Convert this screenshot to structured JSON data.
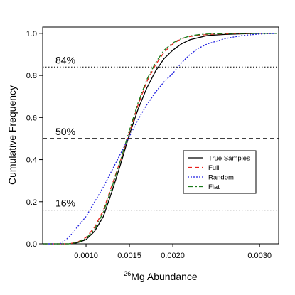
{
  "chart_data": {
    "type": "line",
    "title": "",
    "xlabel_sup": "26",
    "xlabel_main": "Mg Abundance",
    "ylabel": "Cumulative Frequency",
    "xlim": [
      0.0005,
      0.00322
    ],
    "ylim": [
      0.0,
      1.03
    ],
    "x_ticks": [
      0.001,
      0.0015,
      0.002,
      0.003
    ],
    "x_tick_labels": [
      "0.0010",
      "0.0015",
      "0.0020",
      "0.0030"
    ],
    "y_ticks": [
      0.0,
      0.2,
      0.4,
      0.6,
      0.8,
      1.0
    ],
    "y_tick_labels": [
      "0.0",
      "0.2",
      "0.4",
      "0.6",
      "0.8",
      "1.0"
    ],
    "grid": false,
    "legend_position": "center-right",
    "reference_lines": [
      {
        "y": 0.84,
        "label": "84%",
        "style": "dotted"
      },
      {
        "y": 0.5,
        "label": "50%",
        "style": "dashed"
      },
      {
        "y": 0.16,
        "label": "16%",
        "style": "dotted"
      }
    ],
    "series": [
      {
        "name": "True Samples",
        "color": "#000000",
        "dash": "",
        "x": [
          0.0005,
          0.0008,
          0.0009,
          0.001,
          0.0011,
          0.0012,
          0.0013,
          0.0014,
          0.0015,
          0.0016,
          0.0017,
          0.0018,
          0.0019,
          0.002,
          0.0021,
          0.0022,
          0.0023,
          0.0024,
          0.0026,
          0.0028,
          0.003,
          0.0032
        ],
        "y": [
          0.0,
          0.0,
          0.005,
          0.02,
          0.06,
          0.13,
          0.25,
          0.38,
          0.52,
          0.64,
          0.74,
          0.82,
          0.88,
          0.92,
          0.95,
          0.97,
          0.98,
          0.99,
          0.995,
          0.998,
          1.0,
          1.0
        ]
      },
      {
        "name": "Full",
        "color": "#e8211c",
        "dash": "6,4",
        "x": [
          0.0005,
          0.0008,
          0.0009,
          0.001,
          0.0011,
          0.0012,
          0.0013,
          0.0014,
          0.0015,
          0.0016,
          0.0017,
          0.0018,
          0.0019,
          0.002,
          0.0021,
          0.0022,
          0.0023,
          0.0024,
          0.0026,
          0.0028,
          0.003,
          0.0032
        ],
        "y": [
          0.0,
          0.0,
          0.008,
          0.03,
          0.08,
          0.16,
          0.28,
          0.4,
          0.53,
          0.66,
          0.77,
          0.85,
          0.91,
          0.95,
          0.975,
          0.985,
          0.99,
          0.995,
          0.998,
          1.0,
          1.0,
          1.0
        ]
      },
      {
        "name": "Random",
        "color": "#1f1fe0",
        "dash": "2,2",
        "x": [
          0.0005,
          0.0007,
          0.0008,
          0.0009,
          0.001,
          0.0011,
          0.0012,
          0.0013,
          0.0014,
          0.0015,
          0.0016,
          0.0017,
          0.0018,
          0.0019,
          0.002,
          0.0021,
          0.0022,
          0.0023,
          0.0024,
          0.0026,
          0.0028,
          0.003,
          0.0032
        ],
        "y": [
          0.0,
          0.0,
          0.03,
          0.08,
          0.13,
          0.2,
          0.27,
          0.35,
          0.43,
          0.51,
          0.59,
          0.66,
          0.72,
          0.77,
          0.81,
          0.86,
          0.9,
          0.93,
          0.95,
          0.975,
          0.99,
          0.997,
          1.0
        ]
      },
      {
        "name": "Flat",
        "color": "#1a7a1a",
        "dash": "8,3,2,3",
        "x": [
          0.0005,
          0.0008,
          0.0009,
          0.001,
          0.0011,
          0.0012,
          0.0013,
          0.0014,
          0.0015,
          0.0016,
          0.0017,
          0.0018,
          0.0019,
          0.002,
          0.0021,
          0.0022,
          0.0023,
          0.0024,
          0.0026,
          0.0028,
          0.003,
          0.0032
        ],
        "y": [
          0.0,
          0.0,
          0.006,
          0.025,
          0.07,
          0.15,
          0.27,
          0.4,
          0.54,
          0.67,
          0.78,
          0.86,
          0.92,
          0.955,
          0.975,
          0.988,
          0.994,
          0.997,
          0.999,
          1.0,
          1.0,
          1.0
        ]
      }
    ]
  }
}
